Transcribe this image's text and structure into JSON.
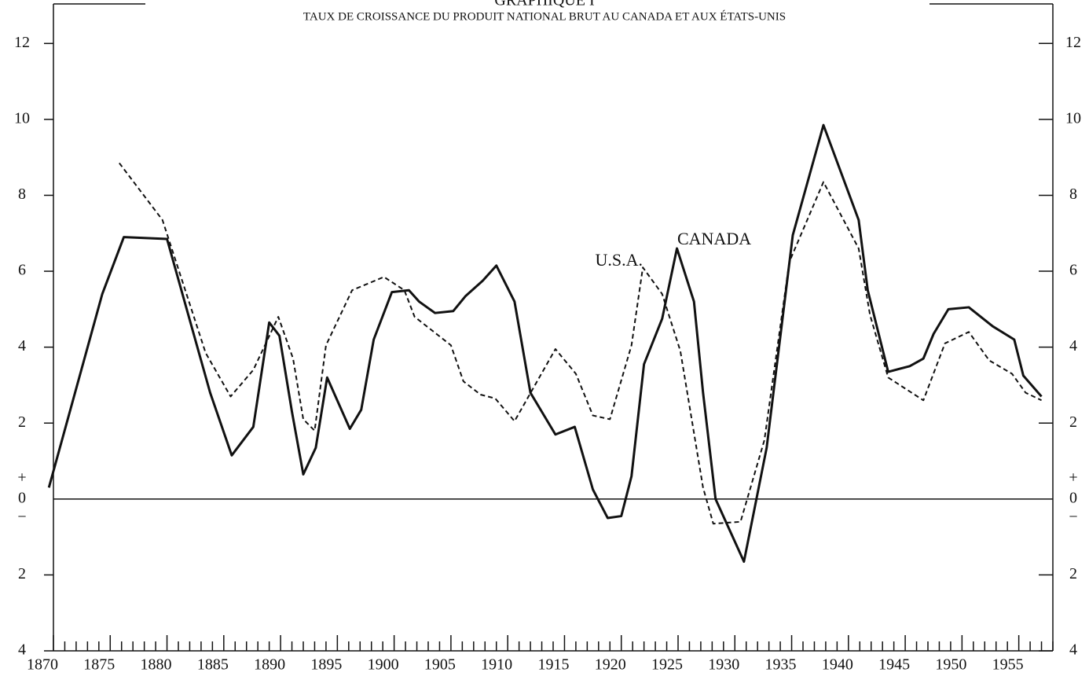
{
  "chart_data": {
    "type": "line",
    "title": "GRAPHIQUE I",
    "subtitle": "TAUX DE CROISSANCE DU PRODUIT NATIONAL BRUT AU CANADA ET AUX ÉTATS-UNIS",
    "zero_signs": [
      "+",
      "−"
    ],
    "xlim": [
      1870,
      1958
    ],
    "xticks": [
      1870,
      1875,
      1880,
      1885,
      1890,
      1895,
      1900,
      1905,
      1910,
      1915,
      1920,
      1925,
      1930,
      1935,
      1940,
      1945,
      1950,
      1955
    ],
    "xminor": [
      1870,
      1871,
      1872,
      1873,
      1874,
      1875,
      1876,
      1877,
      1878,
      1879,
      1880,
      1881,
      1882,
      1883,
      1884,
      1885,
      1886,
      1887,
      1888,
      1889,
      1890,
      1891,
      1892,
      1893,
      1894,
      1895,
      1896,
      1897,
      1898,
      1899,
      1900,
      1901,
      1902,
      1903,
      1904,
      1905,
      1906,
      1907,
      1908,
      1909,
      1910,
      1911,
      1912,
      1913,
      1914,
      1915,
      1916,
      1917,
      1918,
      1919,
      1920,
      1921,
      1922,
      1923,
      1924,
      1925,
      1926,
      1927,
      1928,
      1929,
      1930,
      1931,
      1932,
      1933,
      1934,
      1935,
      1936,
      1937,
      1938,
      1939,
      1940,
      1941,
      1942,
      1943,
      1944,
      1945,
      1946,
      1947,
      1948,
      1949,
      1950,
      1951,
      1952,
      1953,
      1954,
      1955,
      1956,
      1957,
      1958
    ],
    "ylim": [
      -4,
      13
    ],
    "yticks": [
      12,
      10,
      8,
      6,
      4,
      2,
      0,
      {
        "value": -2,
        "label": "2"
      },
      {
        "value": -4,
        "label": "4"
      }
    ],
    "series": [
      {
        "name": "CANADA",
        "color": "#111111",
        "dash": false,
        "x": [
          1869.6,
          1874.3,
          1876.2,
          1880,
          1883.8,
          1885.7,
          1887.6,
          1889,
          1889.9,
          1891,
          1892,
          1893.1,
          1894.1,
          1896.1,
          1897.1,
          1898.2,
          1899.8,
          1901.3,
          1902.2,
          1903.6,
          1905.2,
          1906.3,
          1907.8,
          1909,
          1910.6,
          1912,
          1914.2,
          1915.9,
          1917.5,
          1918.8,
          1920,
          1920.9,
          1922,
          1923.6,
          1924.9,
          1926.4,
          1927.2,
          1928.3,
          1930.8,
          1932.8,
          1935.1,
          1937.8,
          1940.9,
          1941.7,
          1943.5,
          1945.4,
          1946.6,
          1947.5,
          1948.8,
          1950.6,
          1952.7,
          1954.6,
          1955.4,
          1957
        ],
        "values": [
          0.3,
          5.4,
          6.9,
          6.85,
          2.8,
          1.15,
          1.9,
          4.65,
          4.3,
          2.3,
          0.65,
          1.35,
          3.2,
          1.85,
          2.35,
          4.2,
          5.45,
          5.5,
          5.2,
          4.9,
          4.95,
          5.35,
          5.75,
          6.15,
          5.2,
          2.8,
          1.7,
          1.9,
          0.25,
          -0.5,
          -0.45,
          0.6,
          3.55,
          4.75,
          6.6,
          5.2,
          2.8,
          0.0,
          -1.65,
          1.35,
          6.95,
          9.85,
          7.35,
          5.5,
          3.35,
          3.5,
          3.7,
          4.35,
          5.0,
          5.05,
          4.55,
          4.2,
          3.25,
          2.7
        ]
      },
      {
        "name": "U.S.A.",
        "color": "#111111",
        "dash": true,
        "x": [
          1875.8,
          1879.6,
          1883.4,
          1885.6,
          1887.6,
          1889.8,
          1891.1,
          1892,
          1893,
          1894,
          1896.3,
          1899.1,
          1900.9,
          1901.8,
          1905,
          1906.1,
          1907.6,
          1908.9,
          1910.6,
          1914.2,
          1916,
          1917.5,
          1919,
          1920.9,
          1921.9,
          1923.6,
          1925.2,
          1927.2,
          1928.1,
          1930.5,
          1932.6,
          1934.8,
          1937.8,
          1940.9,
          1941.9,
          1943.5,
          1946.6,
          1948.5,
          1950.6,
          1952.4,
          1954.4,
          1955.6,
          1957
        ],
        "values": [
          8.85,
          7.35,
          3.85,
          2.7,
          3.4,
          4.8,
          3.7,
          2.1,
          1.8,
          4.05,
          5.5,
          5.85,
          5.5,
          4.8,
          4.05,
          3.1,
          2.75,
          2.65,
          2.05,
          3.95,
          3.3,
          2.2,
          2.1,
          4.05,
          6.1,
          5.4,
          3.9,
          0.3,
          -0.65,
          -0.6,
          1.55,
          6.25,
          8.35,
          6.6,
          4.85,
          3.2,
          2.6,
          4.1,
          4.4,
          3.65,
          3.3,
          2.8,
          2.6
        ]
      }
    ]
  }
}
